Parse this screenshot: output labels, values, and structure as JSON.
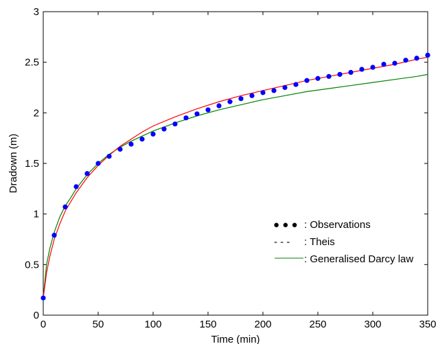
{
  "chart_data": {
    "type": "line",
    "xlabel": "Time (min)",
    "ylabel": "Dradown (m)",
    "xlim": [
      0,
      350
    ],
    "ylim": [
      0,
      3
    ],
    "xticks": [
      0,
      50,
      100,
      150,
      200,
      250,
      300,
      350
    ],
    "yticks": [
      0,
      0.5,
      1,
      1.5,
      2,
      2.5,
      3
    ],
    "ytick_labels": [
      "0",
      "0.5",
      "1",
      "1.5",
      "2",
      "2.5",
      "3"
    ],
    "grid": false,
    "legend_position": "bottom-right",
    "series": [
      {
        "name": "Observations",
        "legend_text": ": Observations",
        "legend_marker": "● ● ●",
        "style": "markers",
        "color": "#0000ff",
        "x": [
          0,
          10,
          20,
          30,
          40,
          50,
          60,
          70,
          80,
          90,
          100,
          110,
          120,
          130,
          140,
          150,
          160,
          170,
          180,
          190,
          200,
          210,
          220,
          230,
          240,
          250,
          260,
          270,
          280,
          290,
          300,
          310,
          320,
          330,
          340,
          350
        ],
        "y": [
          0.17,
          0.79,
          1.07,
          1.27,
          1.4,
          1.5,
          1.57,
          1.64,
          1.69,
          1.74,
          1.79,
          1.84,
          1.89,
          1.95,
          1.99,
          2.03,
          2.07,
          2.11,
          2.14,
          2.17,
          2.2,
          2.22,
          2.25,
          2.28,
          2.32,
          2.34,
          2.36,
          2.38,
          2.4,
          2.43,
          2.45,
          2.48,
          2.49,
          2.52,
          2.54,
          2.57
        ]
      },
      {
        "name": "Theis",
        "legend_text": ": Theis",
        "legend_marker": "- - -",
        "style": "line",
        "color": "#ff0000",
        "x": [
          0,
          3,
          6,
          10,
          15,
          20,
          25,
          30,
          40,
          50,
          60,
          70,
          80,
          90,
          100,
          120,
          140,
          160,
          180,
          200,
          220,
          240,
          260,
          280,
          300,
          320,
          340,
          350
        ],
        "y": [
          0.17,
          0.42,
          0.58,
          0.75,
          0.9,
          1.03,
          1.12,
          1.21,
          1.36,
          1.48,
          1.58,
          1.67,
          1.74,
          1.81,
          1.87,
          1.96,
          2.04,
          2.11,
          2.17,
          2.22,
          2.27,
          2.32,
          2.36,
          2.4,
          2.44,
          2.48,
          2.53,
          2.55
        ]
      },
      {
        "name": "Generalised Darcy law",
        "legend_text": ": Generalised Darcy law",
        "legend_marker": "——",
        "style": "line",
        "color": "#008000",
        "x": [
          0,
          3,
          6,
          10,
          15,
          20,
          25,
          30,
          40,
          50,
          60,
          70,
          80,
          90,
          100,
          120,
          140,
          160,
          180,
          200,
          220,
          240,
          260,
          280,
          300,
          320,
          340,
          350
        ],
        "y": [
          0.17,
          0.5,
          0.66,
          0.82,
          0.97,
          1.08,
          1.16,
          1.25,
          1.39,
          1.5,
          1.59,
          1.66,
          1.72,
          1.77,
          1.82,
          1.9,
          1.97,
          2.03,
          2.08,
          2.13,
          2.17,
          2.21,
          2.24,
          2.27,
          2.3,
          2.33,
          2.36,
          2.38
        ]
      }
    ]
  }
}
